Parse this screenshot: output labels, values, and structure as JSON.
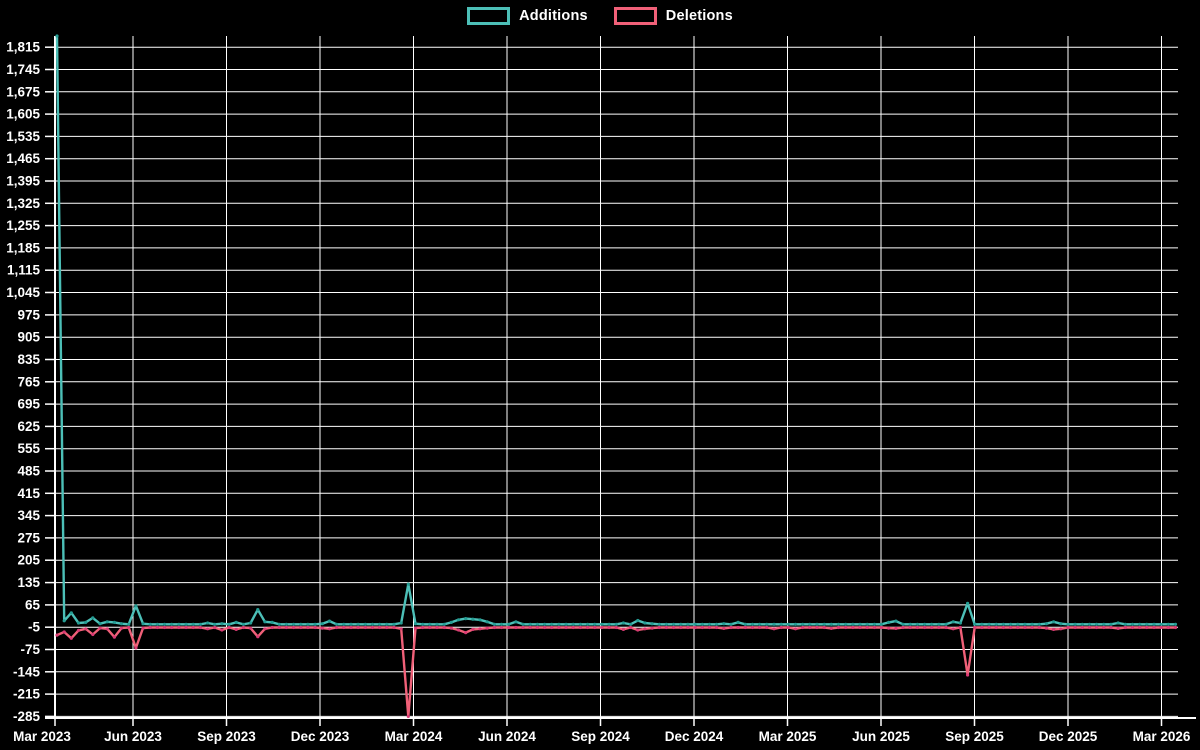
{
  "chart": {
    "background_color": "#000000",
    "grid_color": "#ffffff",
    "axis_color": "#ffffff",
    "label_color": "#ffffff"
  },
  "legend": {
    "items": [
      {
        "label": "Additions",
        "color": "#4cbfb7"
      },
      {
        "label": "Deletions",
        "color": "#f06078"
      }
    ]
  },
  "chart_data": {
    "type": "line",
    "title": "",
    "xlabel": "",
    "ylabel": "",
    "x_unit": "week",
    "grid": true,
    "legend_position": "top-center",
    "ylim": [
      -290,
      1850
    ],
    "y_tick_step": 70,
    "y_tick_values": [
      1815,
      1745,
      1675,
      1605,
      1535,
      1465,
      1395,
      1325,
      1255,
      1185,
      1115,
      1045,
      975,
      905,
      835,
      765,
      695,
      625,
      555,
      485,
      415,
      345,
      275,
      205,
      135,
      65,
      -5,
      -75,
      -145,
      -215,
      -285
    ],
    "x_tick_labels": [
      "Mar 2023",
      "Jun 2023",
      "Sep 2023",
      "Dec 2023",
      "Mar 2024",
      "Jun 2024",
      "Sep 2024",
      "Dec 2024",
      "Mar 2025",
      "Jun 2025",
      "Sep 2025",
      "Dec 2025",
      "Mar 2026"
    ],
    "series": [
      {
        "name": "Additions",
        "color": "#4cbfb7",
        "point_color": "#259c93",
        "values": [
          1850,
          15,
          40,
          8,
          10,
          24,
          6,
          12,
          10,
          6,
          4,
          62,
          6,
          4,
          4,
          4,
          4,
          4,
          4,
          4,
          4,
          8,
          4,
          6,
          4,
          10,
          4,
          8,
          50,
          12,
          10,
          4,
          4,
          4,
          4,
          4,
          4,
          6,
          14,
          4,
          4,
          4,
          4,
          4,
          4,
          4,
          4,
          4,
          8,
          130,
          6,
          4,
          4,
          4,
          4,
          10,
          18,
          22,
          20,
          18,
          12,
          4,
          4,
          4,
          12,
          4,
          4,
          4,
          4,
          4,
          4,
          4,
          4,
          4,
          4,
          4,
          4,
          4,
          4,
          8,
          4,
          16,
          8,
          6,
          4,
          4,
          4,
          4,
          4,
          4,
          4,
          4,
          4,
          6,
          4,
          10,
          4,
          4,
          4,
          4,
          4,
          4,
          4,
          4,
          4,
          4,
          4,
          4,
          4,
          4,
          4,
          4,
          4,
          4,
          4,
          4,
          10,
          14,
          4,
          4,
          4,
          4,
          4,
          4,
          4,
          12,
          8,
          70,
          4,
          4,
          4,
          4,
          4,
          4,
          4,
          4,
          4,
          4,
          6,
          12,
          6,
          4,
          4,
          4,
          4,
          4,
          4,
          4,
          8,
          4,
          4,
          4,
          4,
          4,
          4,
          4,
          4
        ]
      },
      {
        "name": "Deletions",
        "color": "#f06078",
        "point_color": "#d93a74",
        "values": [
          -30,
          -20,
          -40,
          -15,
          -10,
          -28,
          -8,
          -10,
          -36,
          -8,
          -6,
          -70,
          -8,
          -6,
          -6,
          -6,
          -6,
          -6,
          -6,
          -6,
          -6,
          -10,
          -6,
          -14,
          -6,
          -12,
          -6,
          -8,
          -35,
          -10,
          -6,
          -6,
          -6,
          -6,
          -6,
          -6,
          -6,
          -8,
          -10,
          -6,
          -6,
          -6,
          -6,
          -6,
          -6,
          -6,
          -6,
          -6,
          -10,
          -285,
          -8,
          -6,
          -6,
          -6,
          -6,
          -8,
          -14,
          -22,
          -12,
          -10,
          -8,
          -6,
          -6,
          -6,
          -6,
          -6,
          -6,
          -6,
          -6,
          -6,
          -6,
          -6,
          -6,
          -6,
          -6,
          -6,
          -6,
          -6,
          -6,
          -12,
          -6,
          -14,
          -10,
          -8,
          -6,
          -6,
          -6,
          -6,
          -6,
          -6,
          -6,
          -6,
          -6,
          -9,
          -6,
          -6,
          -6,
          -6,
          -6,
          -6,
          -10,
          -6,
          -6,
          -10,
          -6,
          -6,
          -6,
          -6,
          -9,
          -6,
          -6,
          -6,
          -6,
          -6,
          -6,
          -6,
          -8,
          -9,
          -6,
          -6,
          -6,
          -6,
          -6,
          -6,
          -6,
          -10,
          -6,
          -155,
          -6,
          -6,
          -6,
          -6,
          -6,
          -6,
          -6,
          -6,
          -6,
          -6,
          -8,
          -12,
          -10,
          -6,
          -6,
          -6,
          -6,
          -6,
          -6,
          -6,
          -9,
          -6,
          -6,
          -6,
          -6,
          -6,
          -6,
          -6,
          -6
        ]
      }
    ]
  }
}
